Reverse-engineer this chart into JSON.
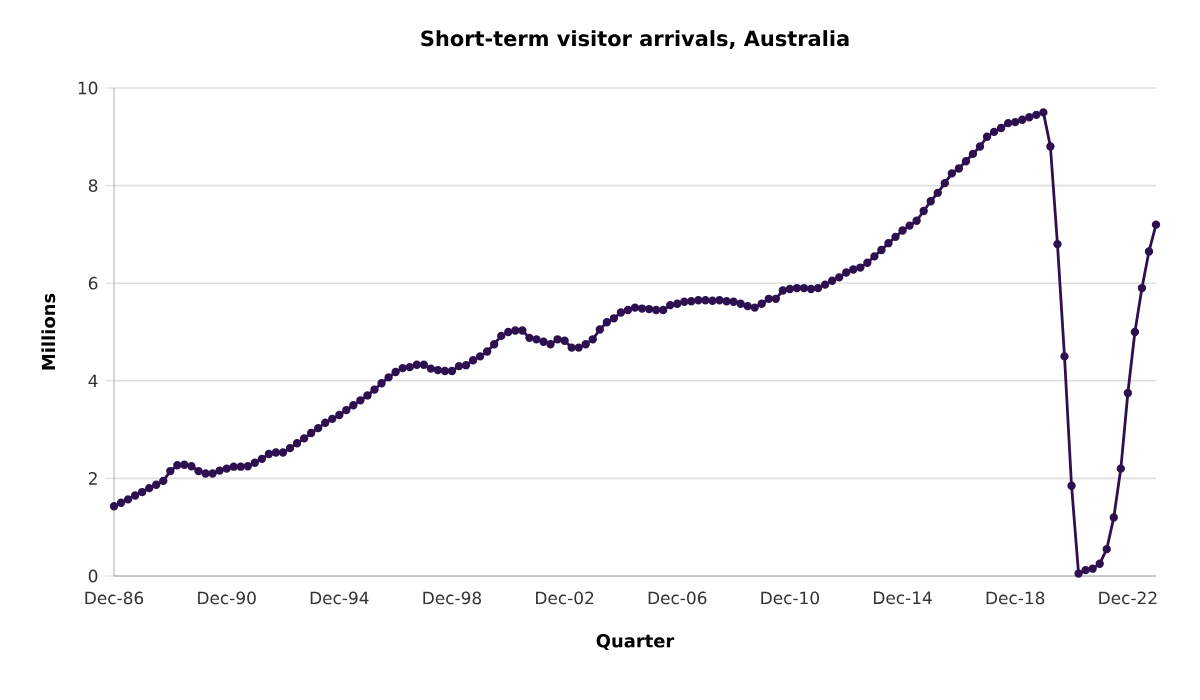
{
  "chart_data": {
    "type": "line",
    "title": "Short-term visitor arrivals, Australia",
    "xlabel": "Quarter",
    "ylabel": "Millions",
    "categories": [
      "Dec-86",
      null,
      null,
      null,
      null,
      null,
      null,
      null,
      null,
      null,
      null,
      null,
      null,
      null,
      null,
      null,
      "Dec-90",
      null,
      null,
      null,
      null,
      null,
      null,
      null,
      null,
      null,
      null,
      null,
      null,
      null,
      null,
      null,
      "Dec-94",
      null,
      null,
      null,
      null,
      null,
      null,
      null,
      null,
      null,
      null,
      null,
      null,
      null,
      null,
      null,
      "Dec-98",
      null,
      null,
      null,
      null,
      null,
      null,
      null,
      null,
      null,
      null,
      null,
      null,
      null,
      null,
      null,
      "Dec-02",
      null,
      null,
      null,
      null,
      null,
      null,
      null,
      null,
      null,
      null,
      null,
      null,
      null,
      null,
      null,
      "Dec-06",
      null,
      null,
      null,
      null,
      null,
      null,
      null,
      null,
      null,
      null,
      null,
      null,
      null,
      null,
      null,
      "Dec-10",
      null,
      null,
      null,
      null,
      null,
      null,
      null,
      null,
      null,
      null,
      null,
      null,
      null,
      null,
      null,
      "Dec-14",
      null,
      null,
      null,
      null,
      null,
      null,
      null,
      null,
      null,
      null,
      null,
      null,
      null,
      null,
      null,
      "Dec-18",
      null,
      null,
      null,
      null,
      null,
      null,
      null,
      null,
      null,
      null,
      null,
      null,
      null,
      null,
      null,
      "Dec-22",
      null,
      null,
      null,
      null
    ],
    "series": [
      {
        "color": "#2e1050",
        "values": [
          1.43,
          1.5,
          1.57,
          1.65,
          1.72,
          1.8,
          1.87,
          1.95,
          2.15,
          2.27,
          2.28,
          2.25,
          2.15,
          2.1,
          2.1,
          2.16,
          2.2,
          2.24,
          2.24,
          2.25,
          2.32,
          2.4,
          2.5,
          2.53,
          2.53,
          2.62,
          2.72,
          2.82,
          2.93,
          3.03,
          3.14,
          3.22,
          3.3,
          3.4,
          3.5,
          3.6,
          3.7,
          3.82,
          3.95,
          4.07,
          4.18,
          4.26,
          4.28,
          4.33,
          4.33,
          4.25,
          4.22,
          4.2,
          4.2,
          4.3,
          4.32,
          4.42,
          4.5,
          4.6,
          4.75,
          4.92,
          5.0,
          5.03,
          5.03,
          4.88,
          4.85,
          4.8,
          4.75,
          4.85,
          4.82,
          4.68,
          4.68,
          4.75,
          4.85,
          5.05,
          5.2,
          5.28,
          5.4,
          5.45,
          5.5,
          5.48,
          5.47,
          5.45,
          5.45,
          5.55,
          5.58,
          5.62,
          5.63,
          5.65,
          5.65,
          5.64,
          5.65,
          5.63,
          5.62,
          5.58,
          5.53,
          5.5,
          5.58,
          5.68,
          5.68,
          5.85,
          5.88,
          5.9,
          5.9,
          5.88,
          5.9,
          5.97,
          6.05,
          6.12,
          6.22,
          6.28,
          6.32,
          6.42,
          6.55,
          6.68,
          6.82,
          6.95,
          7.08,
          7.18,
          7.28,
          7.48,
          7.68,
          7.85,
          8.05,
          8.25,
          8.35,
          8.5,
          8.65,
          8.8,
          9.0,
          9.1,
          9.18,
          9.28,
          9.3,
          9.35,
          9.4,
          9.45,
          9.5,
          8.8,
          6.8,
          4.5,
          1.85,
          0.05,
          0.12,
          0.15,
          0.25,
          0.55,
          1.2,
          2.2,
          3.75,
          5.0,
          5.9,
          6.65,
          7.2
        ]
      }
    ],
    "ylim": [
      0,
      10
    ],
    "yticks": [
      0,
      2,
      4,
      6,
      8,
      10
    ],
    "grid": "y",
    "marker": "circle",
    "line_style": "solid"
  }
}
